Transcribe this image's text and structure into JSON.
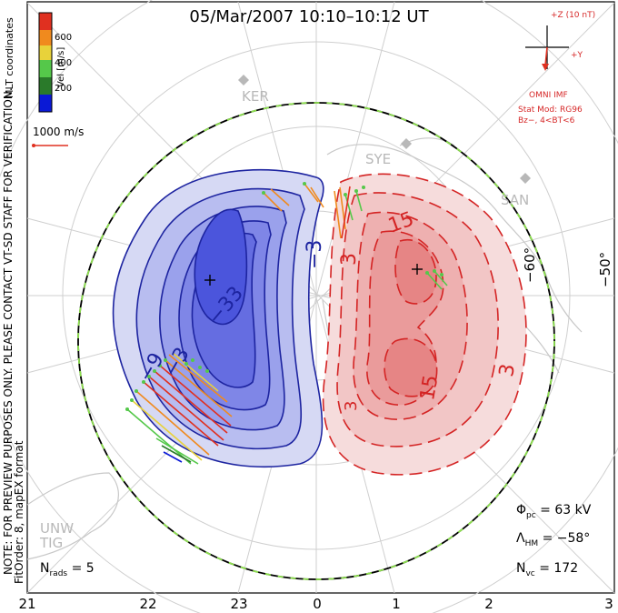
{
  "title": "05/Mar/2007  10:10–10:12  UT",
  "side_note": "NOTE: FOR PREVIEW PURPOSES ONLY. PLEASE CONTACT VT-SD STAFF FOR VERIFICATION.",
  "fit_order": "FitOrder: 8, mapEX format",
  "coords_label": "MLT coordinates",
  "colorbar": {
    "label": "Vel [m/s]",
    "ticks": [
      "600",
      "400",
      "200"
    ],
    "colors": [
      "#0a19d6",
      "#2a7a2a",
      "#55c84a",
      "#e8d23a",
      "#f08a1e",
      "#e03020"
    ]
  },
  "velocity_scale": "1000 m/s",
  "imf": {
    "z_label": "+Z (10 nT)",
    "y_label": "+Y",
    "source": "OMNI IMF",
    "model": "Stat Mod: RG96",
    "condition": "Bz−, 4<BT<6"
  },
  "stations": [
    "KER",
    "SYE",
    "SAN",
    "UNW",
    "TIG"
  ],
  "latitude_labels": [
    "−60°",
    "−50°"
  ],
  "mlt_ticks": [
    "21",
    "22",
    "23",
    "0",
    "1",
    "2",
    "3"
  ],
  "contour_labels": [
    "−33",
    "−9",
    "−3",
    "−3",
    "15",
    "15",
    "3",
    "3",
    "3"
  ],
  "stats": {
    "phi_sym": "Φ",
    "phi_sub": "pc",
    "phi_value": "= 63 kV",
    "lam_sym": "Λ",
    "lam_sub": "HM",
    "lam_value": "= −58°",
    "nvc_sym": "N",
    "nvc_sub": "vc",
    "nvc_value": "= 172",
    "nrads_sym": "N",
    "nrads_sub": "rads",
    "nrads_value": "= 5"
  }
}
